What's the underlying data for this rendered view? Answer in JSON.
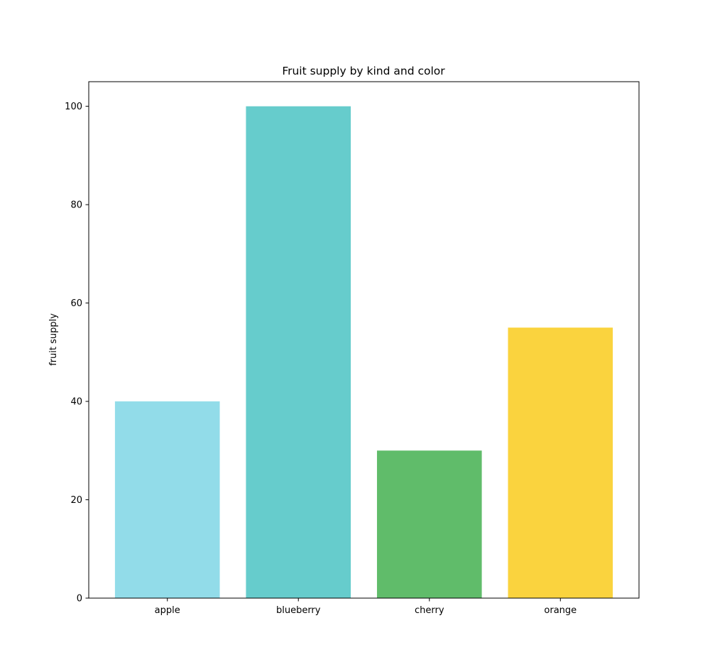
{
  "chart_data": {
    "type": "bar",
    "title": "Fruit supply by kind and color",
    "xlabel": "",
    "ylabel": "fruit supply",
    "categories": [
      "apple",
      "blueberry",
      "cherry",
      "orange"
    ],
    "values": [
      40,
      100,
      30,
      55
    ],
    "colors": [
      "#92dce9",
      "#66cccc",
      "#60bc6a",
      "#fad33e"
    ],
    "ylim": [
      0,
      105
    ],
    "yticks": [
      0,
      20,
      40,
      60,
      80,
      100
    ],
    "grid": false,
    "legend": "none"
  }
}
